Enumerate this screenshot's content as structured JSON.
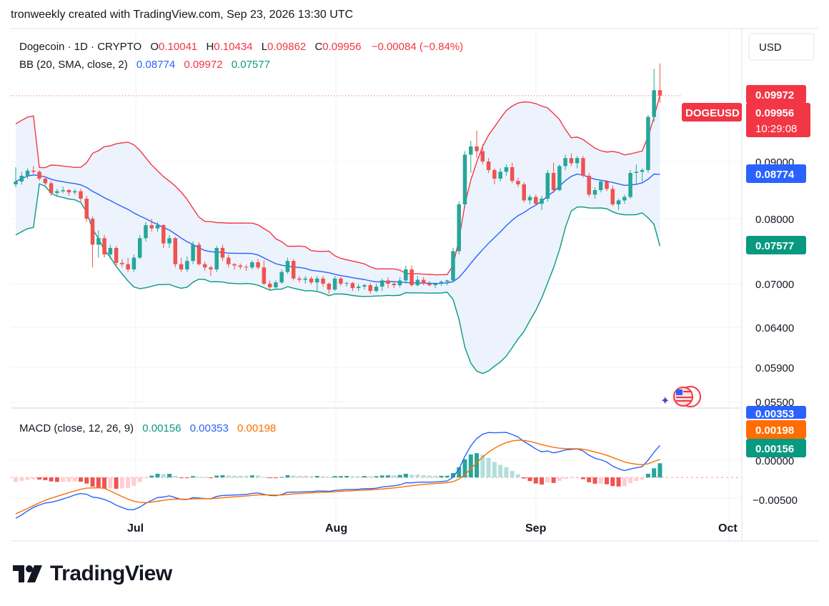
{
  "header": "tronweekly created with TradingView.com, Sep 23, 2026 13:30 UTC",
  "currency_button": "USD",
  "legend": {
    "symbol": "Dogecoin · 1D · CRYPTO",
    "o_label": "O",
    "o": "0.10041",
    "h_label": "H",
    "h": "0.10434",
    "l_label": "L",
    "l": "0.09862",
    "c_label": "C",
    "c": "0.09956",
    "change": "−0.00084 (−0.84%)",
    "bb_label": "BB (20, SMA, close, 2)",
    "bb_basis": "0.08774",
    "bb_upper": "0.09972",
    "bb_lower": "0.07577",
    "macd_label": "MACD (close, 12, 26, 9)",
    "macd_hist": "0.00156",
    "macd_line": "0.00353",
    "macd_signal": "0.00198"
  },
  "price_axis": [
    "0.09000",
    "0.08000",
    "0.07000",
    "0.06400",
    "0.05900",
    "0.05500"
  ],
  "price_badges": {
    "upper": "0.09972",
    "ticker": "DOGEUSD",
    "last": "0.09956",
    "countdown": "10:29:08",
    "basis": "0.08774",
    "lower": "0.07577"
  },
  "macd_axis": [
    "0.00000",
    "−0.00500"
  ],
  "macd_badges": {
    "line": "0.00353",
    "signal": "0.00198",
    "hist": "0.00156"
  },
  "time_axis": [
    "Jul",
    "Aug",
    "Sep",
    "Oct"
  ],
  "brand": "TradingView",
  "colors": {
    "up": "#26a69a",
    "down": "#ef5350",
    "bb_upper": "#f23645",
    "bb_basis": "#2962ff",
    "bb_lower": "#089981",
    "bb_fill": "#eaf2fd",
    "macd_line": "#2962ff",
    "signal_line": "#ff6d00"
  },
  "chart_data": {
    "type": "candlestick",
    "timeframe": "1D",
    "ylim": [
      0.0525,
      0.1055
    ],
    "x_ticks": [
      "Jul",
      "Aug",
      "Sep",
      "Oct"
    ],
    "ohlc": [
      [
        0.086,
        0.089,
        0.0855,
        0.0865
      ],
      [
        0.0865,
        0.0882,
        0.086,
        0.0875
      ],
      [
        0.0875,
        0.0888,
        0.087,
        0.0884
      ],
      [
        0.0884,
        0.0892,
        0.0878,
        0.0882
      ],
      [
        0.0882,
        0.0885,
        0.0866,
        0.087
      ],
      [
        0.087,
        0.0874,
        0.0858,
        0.0862
      ],
      [
        0.0862,
        0.0866,
        0.084,
        0.0845
      ],
      [
        0.0845,
        0.0852,
        0.084,
        0.0848
      ],
      [
        0.0848,
        0.0856,
        0.0845,
        0.085
      ],
      [
        0.085,
        0.0852,
        0.084,
        0.0846
      ],
      [
        0.0846,
        0.0852,
        0.0842,
        0.0848
      ],
      [
        0.0848,
        0.0852,
        0.083,
        0.0835
      ],
      [
        0.0835,
        0.084,
        0.0795,
        0.08
      ],
      [
        0.08,
        0.0804,
        0.0725,
        0.076
      ],
      [
        0.076,
        0.0782,
        0.074,
        0.077
      ],
      [
        0.077,
        0.0775,
        0.074,
        0.0745
      ],
      [
        0.0745,
        0.076,
        0.0738,
        0.0755
      ],
      [
        0.0755,
        0.0758,
        0.0725,
        0.0732
      ],
      [
        0.0732,
        0.0738,
        0.0725,
        0.073
      ],
      [
        0.073,
        0.074,
        0.0718,
        0.0722
      ],
      [
        0.0722,
        0.0745,
        0.0718,
        0.074
      ],
      [
        0.074,
        0.0775,
        0.0738,
        0.077
      ],
      [
        0.077,
        0.0795,
        0.0765,
        0.079
      ],
      [
        0.079,
        0.08,
        0.078,
        0.0785
      ],
      [
        0.0785,
        0.0795,
        0.078,
        0.079
      ],
      [
        0.079,
        0.0792,
        0.0755,
        0.0762
      ],
      [
        0.0762,
        0.0775,
        0.0755,
        0.077
      ],
      [
        0.077,
        0.0772,
        0.0725,
        0.073
      ],
      [
        0.073,
        0.074,
        0.0718,
        0.0722
      ],
      [
        0.0722,
        0.0742,
        0.0718,
        0.0735
      ],
      [
        0.0735,
        0.0765,
        0.073,
        0.076
      ],
      [
        0.076,
        0.0764,
        0.0728,
        0.073
      ],
      [
        0.073,
        0.0734,
        0.072,
        0.0725
      ],
      [
        0.0725,
        0.0728,
        0.0712,
        0.0722
      ],
      [
        0.0722,
        0.0758,
        0.0718,
        0.0755
      ],
      [
        0.0755,
        0.076,
        0.0735,
        0.074
      ],
      [
        0.074,
        0.0745,
        0.0725,
        0.073
      ],
      [
        0.073,
        0.0732,
        0.0722,
        0.0728
      ],
      [
        0.0728,
        0.0731,
        0.0722,
        0.0726
      ],
      [
        0.0726,
        0.0729,
        0.072,
        0.0725
      ],
      [
        0.0725,
        0.0736,
        0.0722,
        0.0733
      ],
      [
        0.0733,
        0.0738,
        0.0722,
        0.0725
      ],
      [
        0.0725,
        0.0736,
        0.0698,
        0.07
      ],
      [
        0.07,
        0.0705,
        0.069,
        0.0695
      ],
      [
        0.0695,
        0.0705,
        0.0692,
        0.0702
      ],
      [
        0.0702,
        0.0722,
        0.07,
        0.0718
      ],
      [
        0.0718,
        0.074,
        0.0715,
        0.0735
      ],
      [
        0.0735,
        0.0738,
        0.0705,
        0.0708
      ],
      [
        0.0708,
        0.0712,
        0.0702,
        0.0706
      ],
      [
        0.0706,
        0.0712,
        0.07,
        0.0708
      ],
      [
        0.0708,
        0.0711,
        0.0699,
        0.0702
      ],
      [
        0.0702,
        0.0712,
        0.069,
        0.0708
      ],
      [
        0.0708,
        0.0712,
        0.0696,
        0.07
      ],
      [
        0.07,
        0.0702,
        0.0686,
        0.0692
      ],
      [
        0.0692,
        0.0712,
        0.069,
        0.0708
      ],
      [
        0.0708,
        0.071,
        0.0697,
        0.07
      ],
      [
        0.07,
        0.0703,
        0.0696,
        0.0701
      ],
      [
        0.0701,
        0.0703,
        0.069,
        0.0694
      ],
      [
        0.0694,
        0.07,
        0.069,
        0.0696
      ],
      [
        0.0696,
        0.07,
        0.0692,
        0.0698
      ],
      [
        0.0698,
        0.0701,
        0.0686,
        0.069
      ],
      [
        0.069,
        0.07,
        0.0688,
        0.0696
      ],
      [
        0.0696,
        0.0708,
        0.069,
        0.0705
      ],
      [
        0.0705,
        0.071,
        0.0694,
        0.07
      ],
      [
        0.07,
        0.0704,
        0.0694,
        0.0698
      ],
      [
        0.0698,
        0.071,
        0.0695,
        0.0705
      ],
      [
        0.0705,
        0.0728,
        0.07,
        0.0722
      ],
      [
        0.0722,
        0.0728,
        0.0696,
        0.0698
      ],
      [
        0.0698,
        0.0712,
        0.0696,
        0.0706
      ],
      [
        0.0706,
        0.071,
        0.0698,
        0.07
      ],
      [
        0.07,
        0.0704,
        0.0696,
        0.0698
      ],
      [
        0.0698,
        0.0702,
        0.0694,
        0.07
      ],
      [
        0.07,
        0.0705,
        0.0697,
        0.0703
      ],
      [
        0.0703,
        0.0706,
        0.0698,
        0.0705
      ],
      [
        0.0705,
        0.0755,
        0.0702,
        0.075
      ],
      [
        0.075,
        0.083,
        0.0745,
        0.0825
      ],
      [
        0.0825,
        0.0915,
        0.082,
        0.091
      ],
      [
        0.091,
        0.093,
        0.088,
        0.0922
      ],
      [
        0.0922,
        0.0945,
        0.0905,
        0.0915
      ],
      [
        0.0915,
        0.0925,
        0.0895,
        0.09
      ],
      [
        0.09,
        0.0905,
        0.088,
        0.0885
      ],
      [
        0.0885,
        0.0888,
        0.086,
        0.087
      ],
      [
        0.087,
        0.0888,
        0.0865,
        0.0882
      ],
      [
        0.0882,
        0.0895,
        0.0875,
        0.089
      ],
      [
        0.089,
        0.0898,
        0.0862,
        0.0866
      ],
      [
        0.0866,
        0.0872,
        0.0855,
        0.086
      ],
      [
        0.086,
        0.0864,
        0.0828,
        0.0832
      ],
      [
        0.0832,
        0.0842,
        0.0825,
        0.0838
      ],
      [
        0.0838,
        0.0842,
        0.0822,
        0.0826
      ],
      [
        0.0826,
        0.084,
        0.0815,
        0.0835
      ],
      [
        0.0835,
        0.0885,
        0.083,
        0.088
      ],
      [
        0.088,
        0.0898,
        0.0845,
        0.085
      ],
      [
        0.085,
        0.0895,
        0.0848,
        0.0892
      ],
      [
        0.0892,
        0.091,
        0.0885,
        0.0905
      ],
      [
        0.0905,
        0.0912,
        0.0892,
        0.0897
      ],
      [
        0.0897,
        0.0908,
        0.0888,
        0.0905
      ],
      [
        0.0905,
        0.0908,
        0.0872,
        0.0875
      ],
      [
        0.0875,
        0.088,
        0.0838,
        0.0842
      ],
      [
        0.0842,
        0.0855,
        0.0835,
        0.085
      ],
      [
        0.085,
        0.0868,
        0.0846,
        0.0865
      ],
      [
        0.0865,
        0.0867,
        0.0848,
        0.0852
      ],
      [
        0.0852,
        0.0858,
        0.0822,
        0.0825
      ],
      [
        0.0825,
        0.0835,
        0.0815,
        0.0832
      ],
      [
        0.0832,
        0.0842,
        0.0826,
        0.0838
      ],
      [
        0.0838,
        0.0885,
        0.0835,
        0.088
      ],
      [
        0.088,
        0.0895,
        0.086,
        0.0882
      ],
      [
        0.0882,
        0.0888,
        0.0865,
        0.0885
      ],
      [
        0.0885,
        0.0968,
        0.088,
        0.0965
      ],
      [
        0.0965,
        0.1035,
        0.0958,
        0.1004
      ],
      [
        0.1004,
        0.1043,
        0.0986,
        0.0996
      ]
    ],
    "bollinger": {
      "length": 20,
      "basis_last": 0.08774,
      "upper_last": 0.09972,
      "lower_last": 0.07577
    },
    "macd": {
      "fast": 12,
      "slow": 26,
      "signal": 9,
      "macd_last": 0.00353,
      "signal_last": 0.00198,
      "hist_last": 0.00156,
      "ylim": [
        -0.0066,
        0.0074
      ]
    }
  }
}
